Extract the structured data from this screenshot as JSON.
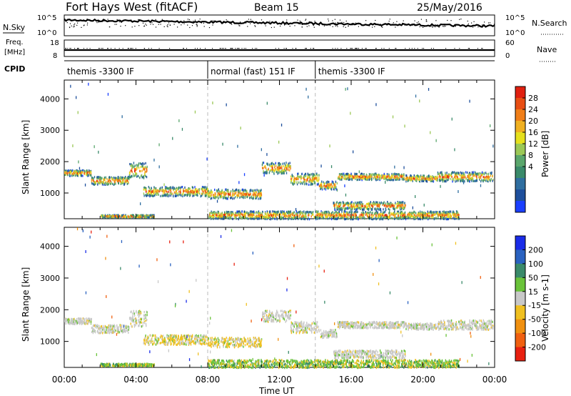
{
  "header": {
    "station": "Fort Hays West (fitACF)",
    "beam": "Beam 15",
    "date": "25/May/2016"
  },
  "noise_panel": {
    "left_label": "N.Sky",
    "right_label": "N.Search",
    "left_ticks": [
      "10^5",
      "10^0"
    ],
    "right_ticks": [
      "10^5",
      "10^0"
    ]
  },
  "freq_panel": {
    "left_label_top": "Freq.",
    "left_label_unit": "[MHz]",
    "left_ticks": [
      "18",
      "8"
    ],
    "right_label": "Nave",
    "right_ticks": [
      "60",
      "0"
    ]
  },
  "cpid": {
    "label": "CPID",
    "segments": [
      {
        "name": "themis -3300 IF",
        "start_h": 0,
        "end_h": 8
      },
      {
        "name": "normal (fast) 151 IF",
        "start_h": 8,
        "end_h": 14
      },
      {
        "name": "themis -3300 IF",
        "start_h": 14,
        "end_h": 24
      }
    ]
  },
  "x_axis": {
    "label": "Time UT",
    "ticks": [
      "00:00",
      "04:00",
      "08:00",
      "12:00",
      "16:00",
      "20:00",
      "00:00"
    ]
  },
  "chart_data": [
    {
      "type": "heatmap",
      "name": "power",
      "ylabel": "Slant Range [km]",
      "ylim": [
        180,
        4600
      ],
      "yticks": [
        1000,
        2000,
        3000,
        4000
      ],
      "xlim_hours": [
        0,
        24
      ],
      "colorbar_label": "Power [dB]",
      "colorbar_ticks": [
        "4",
        "8",
        "12",
        "16",
        "20",
        "24",
        "28"
      ],
      "colorbar_colors": [
        "#1a3fff",
        "#1e4f9c",
        "#2f6ea0",
        "#3a8a6a",
        "#5aa66c",
        "#9bc856",
        "#e6e01c",
        "#f0b021",
        "#f07e18",
        "#e84e13",
        "#e02010"
      ],
      "bands": [
        {
          "t0": 0.0,
          "t1": 1.5,
          "r0": 1580,
          "r1": 1760
        },
        {
          "t0": 1.5,
          "t1": 3.6,
          "r0": 1300,
          "r1": 1550
        },
        {
          "t0": 3.6,
          "t1": 4.6,
          "r0": 1500,
          "r1": 2000
        },
        {
          "t0": 4.4,
          "t1": 8.0,
          "r0": 930,
          "r1": 1230
        },
        {
          "t0": 8.0,
          "t1": 11.0,
          "r0": 850,
          "r1": 1150
        },
        {
          "t0": 11.0,
          "t1": 12.6,
          "r0": 1650,
          "r1": 2000
        },
        {
          "t0": 12.6,
          "t1": 14.2,
          "r0": 1300,
          "r1": 1650
        },
        {
          "t0": 14.2,
          "t1": 15.2,
          "r0": 1150,
          "r1": 1400
        },
        {
          "t0": 15.2,
          "t1": 17.2,
          "r0": 1450,
          "r1": 1650
        },
        {
          "t0": 17.2,
          "t1": 19.0,
          "r0": 1450,
          "r1": 1650
        },
        {
          "t0": 19.0,
          "t1": 20.8,
          "r0": 1400,
          "r1": 1600
        },
        {
          "t0": 20.8,
          "t1": 23.9,
          "r0": 1400,
          "r1": 1700
        },
        {
          "t0": 15.0,
          "t1": 19.0,
          "r0": 500,
          "r1": 750
        },
        {
          "t0": 2.0,
          "t1": 5.0,
          "r0": 250,
          "r1": 330
        },
        {
          "t0": 8.0,
          "t1": 22.0,
          "r0": 200,
          "r1": 450
        }
      ]
    },
    {
      "type": "heatmap",
      "name": "velocity",
      "ylabel": "Slant Range [km]",
      "ylim": [
        180,
        4600
      ],
      "yticks": [
        1000,
        2000,
        3000,
        4000
      ],
      "xlim_hours": [
        0,
        24
      ],
      "colorbar_label": "Velocity [m s-1]",
      "colorbar_ticks": [
        "200",
        "100",
        "50",
        "15",
        "-15",
        "-50",
        "-100",
        "-200"
      ],
      "colorbar_colors": [
        "#1a2ce8",
        "#2a62c0",
        "#3a8a6a",
        "#6ac33a",
        "#c8c8c8",
        "#f0c020",
        "#f09010",
        "#f06010",
        "#e82010"
      ],
      "bands": [
        {
          "t0": 0.0,
          "t1": 1.5,
          "r0": 1580,
          "r1": 1760
        },
        {
          "t0": 1.5,
          "t1": 3.6,
          "r0": 1300,
          "r1": 1550
        },
        {
          "t0": 3.6,
          "t1": 4.6,
          "r0": 1500,
          "r1": 2000
        },
        {
          "t0": 4.4,
          "t1": 8.0,
          "r0": 930,
          "r1": 1230
        },
        {
          "t0": 8.0,
          "t1": 11.0,
          "r0": 850,
          "r1": 1150
        },
        {
          "t0": 11.0,
          "t1": 12.6,
          "r0": 1650,
          "r1": 2000
        },
        {
          "t0": 12.6,
          "t1": 14.2,
          "r0": 1300,
          "r1": 1650
        },
        {
          "t0": 14.2,
          "t1": 15.2,
          "r0": 1150,
          "r1": 1400
        },
        {
          "t0": 15.2,
          "t1": 17.2,
          "r0": 1450,
          "r1": 1650
        },
        {
          "t0": 17.2,
          "t1": 19.0,
          "r0": 1450,
          "r1": 1650
        },
        {
          "t0": 19.0,
          "t1": 20.8,
          "r0": 1400,
          "r1": 1600
        },
        {
          "t0": 20.8,
          "t1": 23.9,
          "r0": 1400,
          "r1": 1700
        },
        {
          "t0": 15.0,
          "t1": 19.0,
          "r0": 500,
          "r1": 750
        },
        {
          "t0": 2.0,
          "t1": 5.0,
          "r0": 250,
          "r1": 330
        },
        {
          "t0": 8.0,
          "t1": 22.0,
          "r0": 200,
          "r1": 450
        }
      ]
    }
  ]
}
